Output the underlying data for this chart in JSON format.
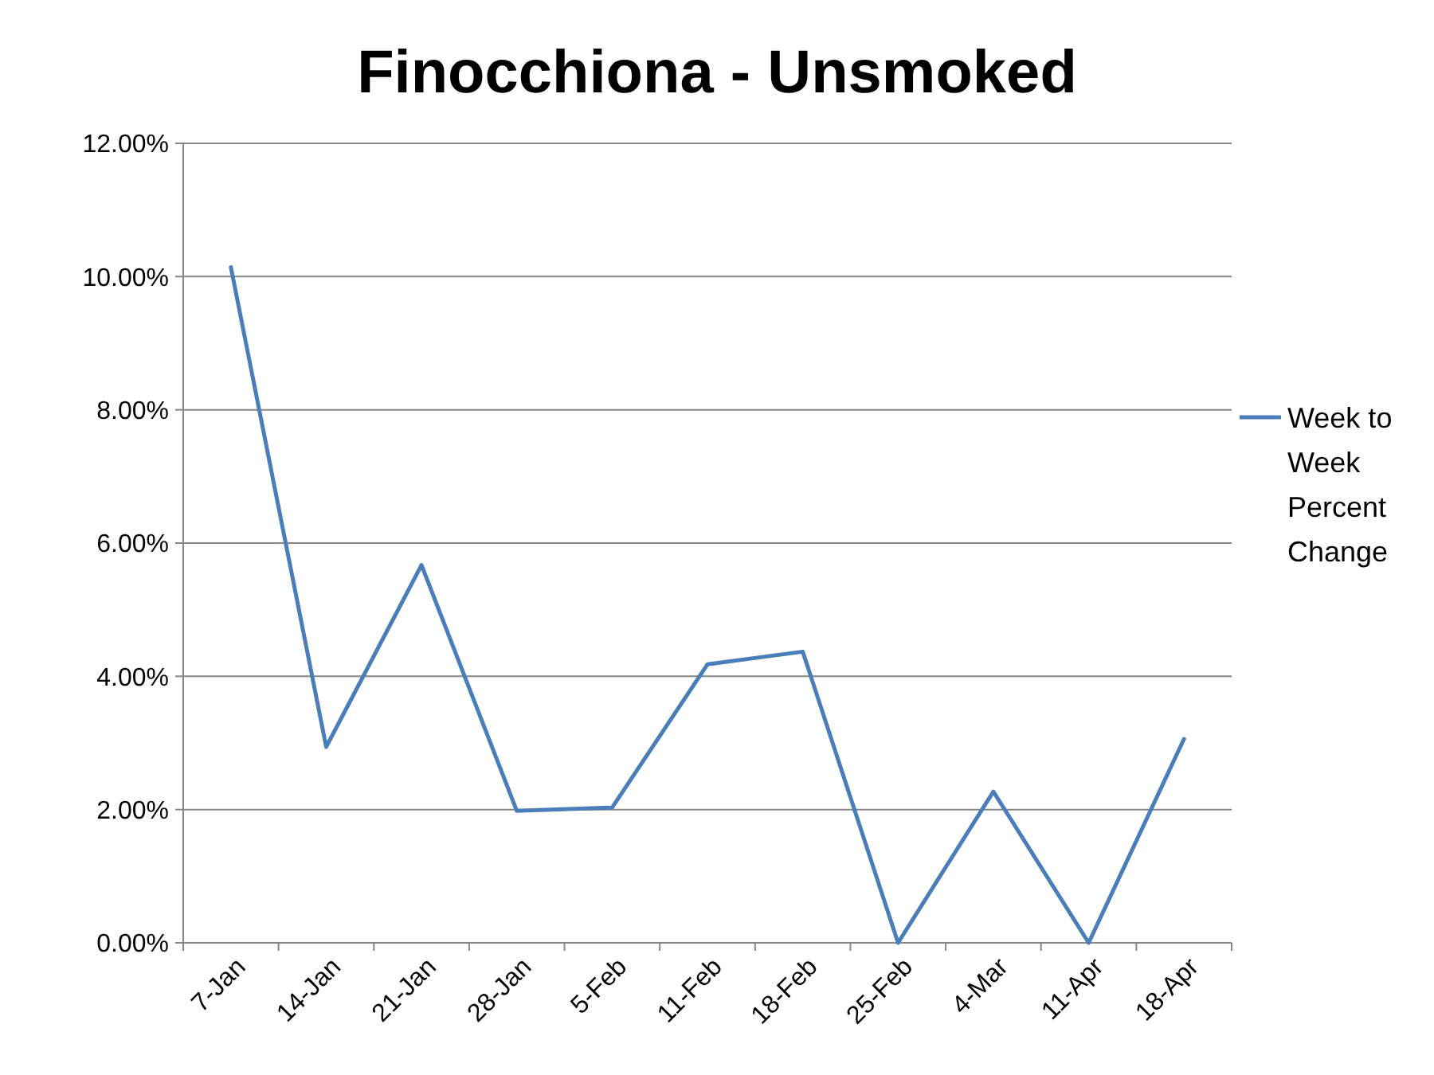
{
  "chart_data": {
    "type": "line",
    "title": "Finocchiona - Unsmoked",
    "categories": [
      "7-Jan",
      "14-Jan",
      "21-Jan",
      "28-Jan",
      "5-Feb",
      "11-Feb",
      "18-Feb",
      "25-Feb",
      "4-Mar",
      "11-Apr",
      "18-Apr"
    ],
    "series": [
      {
        "name": "Week to Week Percent Change",
        "color": "#4a7ebb",
        "values": [
          10.14,
          2.94,
          5.67,
          1.98,
          2.03,
          4.18,
          4.37,
          0,
          2.27,
          0,
          3.06
        ]
      }
    ],
    "ylim": [
      0,
      12
    ],
    "yticks": [
      {
        "value": 0,
        "label": "0.00%"
      },
      {
        "value": 2,
        "label": "2.00%"
      },
      {
        "value": 4,
        "label": "4.00%"
      },
      {
        "value": 6,
        "label": "6.00%"
      },
      {
        "value": 8,
        "label": "8.00%"
      },
      {
        "value": 10,
        "label": "10.00%"
      },
      {
        "value": 12,
        "label": "12.00%"
      }
    ],
    "grid": "y",
    "legend": "right",
    "marker": "none",
    "line_style": "solid"
  }
}
